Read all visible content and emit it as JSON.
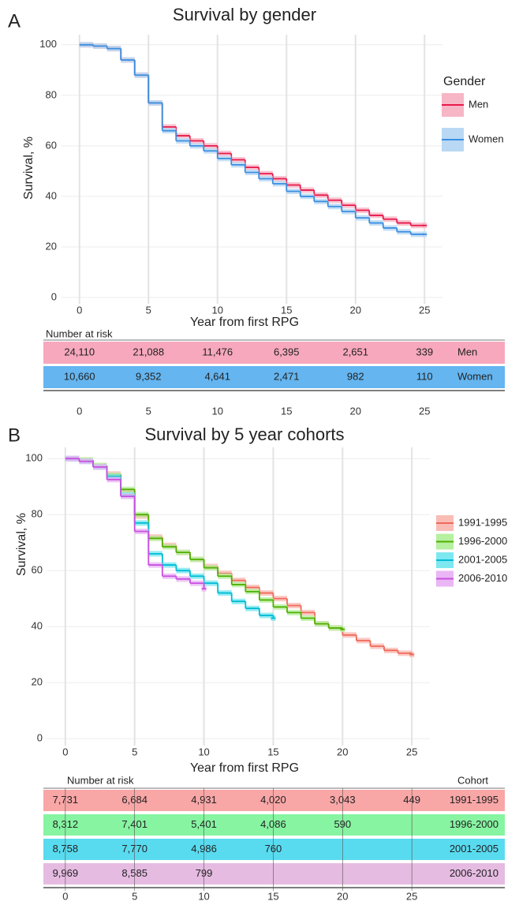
{
  "chart_data": [
    {
      "type": "step",
      "panel_label": "A",
      "title": "Survival by gender",
      "y_label": "Survival, %",
      "x_label": "Year from first RPG",
      "x": [
        0,
        1,
        2,
        3,
        4,
        5,
        6,
        7,
        8,
        9,
        10,
        11,
        12,
        13,
        14,
        15,
        16,
        17,
        18,
        19,
        20,
        21,
        22,
        23,
        24,
        25
      ],
      "xlim": [
        -1.3,
        26.3
      ],
      "ylim": [
        -2.5,
        104
      ],
      "xticks": [
        0,
        5,
        10,
        15,
        20,
        25
      ],
      "yticks": [
        0,
        20,
        40,
        60,
        80,
        100
      ],
      "grid": true,
      "legend_title": "Gender",
      "series": [
        {
          "name": "Men",
          "color": "#e8194a",
          "band_color": "#f7b6c6",
          "values": [
            100,
            99.5,
            98.5,
            94,
            88,
            77,
            67.5,
            64,
            62,
            60,
            57,
            54.5,
            51.5,
            49,
            47,
            44.5,
            42.5,
            40.5,
            38.5,
            36.5,
            34.5,
            32.5,
            31,
            29.5,
            28.5,
            28.5
          ]
        },
        {
          "name": "Women",
          "color": "#3a8fe0",
          "band_color": "#b9d8f3",
          "values": [
            100,
            99.5,
            98.5,
            94,
            88,
            77,
            66,
            62,
            60,
            58,
            55,
            52.5,
            49.5,
            47,
            45,
            42,
            40,
            38,
            36,
            34,
            31.5,
            29.5,
            27.5,
            26,
            25,
            25
          ]
        }
      ],
      "risk_table": {
        "title": "Number at risk",
        "times": [
          0,
          5,
          10,
          15,
          20,
          25
        ],
        "rows": [
          {
            "name": "Men",
            "color": "#f7a8bd",
            "values": [
              24110,
              21088,
              11476,
              6395,
              2651,
              339
            ],
            "value_labels": [
              "24,110",
              "21,088",
              "11,476",
              "6,395",
              "2,651",
              "339"
            ]
          },
          {
            "name": "Women",
            "color": "#64b5f0",
            "values": [
              10660,
              9352,
              4641,
              2471,
              982,
              110
            ],
            "value_labels": [
              "10,660",
              "9,352",
              "4,641",
              "2,471",
              "982",
              "110"
            ]
          }
        ]
      }
    },
    {
      "type": "step",
      "panel_label": "B",
      "title": "Survival by 5 year cohorts",
      "y_label": "Survival, %",
      "x_label": "Year from first RPG",
      "x": [
        0,
        1,
        2,
        3,
        4,
        5,
        6,
        7,
        8,
        9,
        10,
        11,
        12,
        13,
        14,
        15,
        16,
        17,
        18,
        19,
        20,
        21,
        22,
        23,
        24,
        25
      ],
      "xlim": [
        -1.3,
        26.3
      ],
      "ylim": [
        -2.5,
        104
      ],
      "xticks": [
        0,
        5,
        10,
        15,
        20,
        25
      ],
      "yticks": [
        0,
        20,
        40,
        60,
        80,
        100
      ],
      "grid": true,
      "series": [
        {
          "name": "1991-1995",
          "color": "#f0695a",
          "band_color": "#f9bdb6",
          "values": [
            100,
            99.5,
            97.5,
            94.5,
            88.5,
            79.5,
            72,
            69,
            66.5,
            64,
            61.5,
            59,
            56.5,
            54,
            52,
            50,
            47.5,
            45,
            41,
            39.5,
            37,
            35,
            33,
            31.5,
            30.5,
            30
          ]
        },
        {
          "name": "1996-2000",
          "color": "#4fb000",
          "band_color": "#b7f0a0",
          "values": [
            100,
            99.5,
            97.5,
            94,
            89,
            80,
            71.5,
            68.5,
            66.5,
            64,
            61,
            58,
            55,
            52.5,
            49.5,
            47,
            45,
            43,
            41,
            39.5,
            39,
            null,
            null,
            null,
            null,
            null
          ]
        },
        {
          "name": "2001-2005",
          "color": "#00bcd6",
          "band_color": "#7de8f0",
          "values": [
            100,
            99,
            97,
            93.5,
            87,
            77,
            66,
            62,
            60,
            58,
            55.5,
            52,
            49,
            46.5,
            44,
            43,
            null,
            null,
            null,
            null,
            null,
            null,
            null,
            null,
            null,
            null
          ]
        },
        {
          "name": "2006-2010",
          "color": "#c850e0",
          "band_color": "#eab6f5",
          "values": [
            100,
            99,
            97,
            92.5,
            86.5,
            74,
            62,
            58,
            57,
            55.5,
            53.5,
            null,
            null,
            null,
            null,
            null,
            null,
            null,
            null,
            null,
            null,
            null,
            null,
            null,
            null,
            null
          ]
        }
      ],
      "risk_table": {
        "title": "Number at risk",
        "row_header": "Cohort",
        "times": [
          0,
          5,
          10,
          15,
          20,
          25
        ],
        "rows": [
          {
            "name": "1991-1995",
            "color": "#f9a6a6",
            "values": [
              7731,
              6684,
              4931,
              4020,
              3043,
              449
            ],
            "value_labels": [
              "7,731",
              "6,684",
              "4,931",
              "4,020",
              "3,043",
              "449"
            ]
          },
          {
            "name": "1996-2000",
            "color": "#86f4a1",
            "values": [
              8312,
              7401,
              5401,
              4086,
              590,
              null
            ],
            "value_labels": [
              "8,312",
              "7,401",
              "5,401",
              "4,086",
              "590",
              null
            ]
          },
          {
            "name": "2001-2005",
            "color": "#58dbef",
            "values": [
              8758,
              7770,
              4986,
              760,
              null,
              null
            ],
            "value_labels": [
              "8,758",
              "7,770",
              "4,986",
              "760",
              null,
              null
            ]
          },
          {
            "name": "2006-2010",
            "color": "#e6bbe2",
            "values": [
              9969,
              8585,
              799,
              null,
              null,
              null
            ],
            "value_labels": [
              "9,969",
              "8,585",
              "799",
              null,
              null,
              null
            ]
          }
        ]
      }
    }
  ]
}
